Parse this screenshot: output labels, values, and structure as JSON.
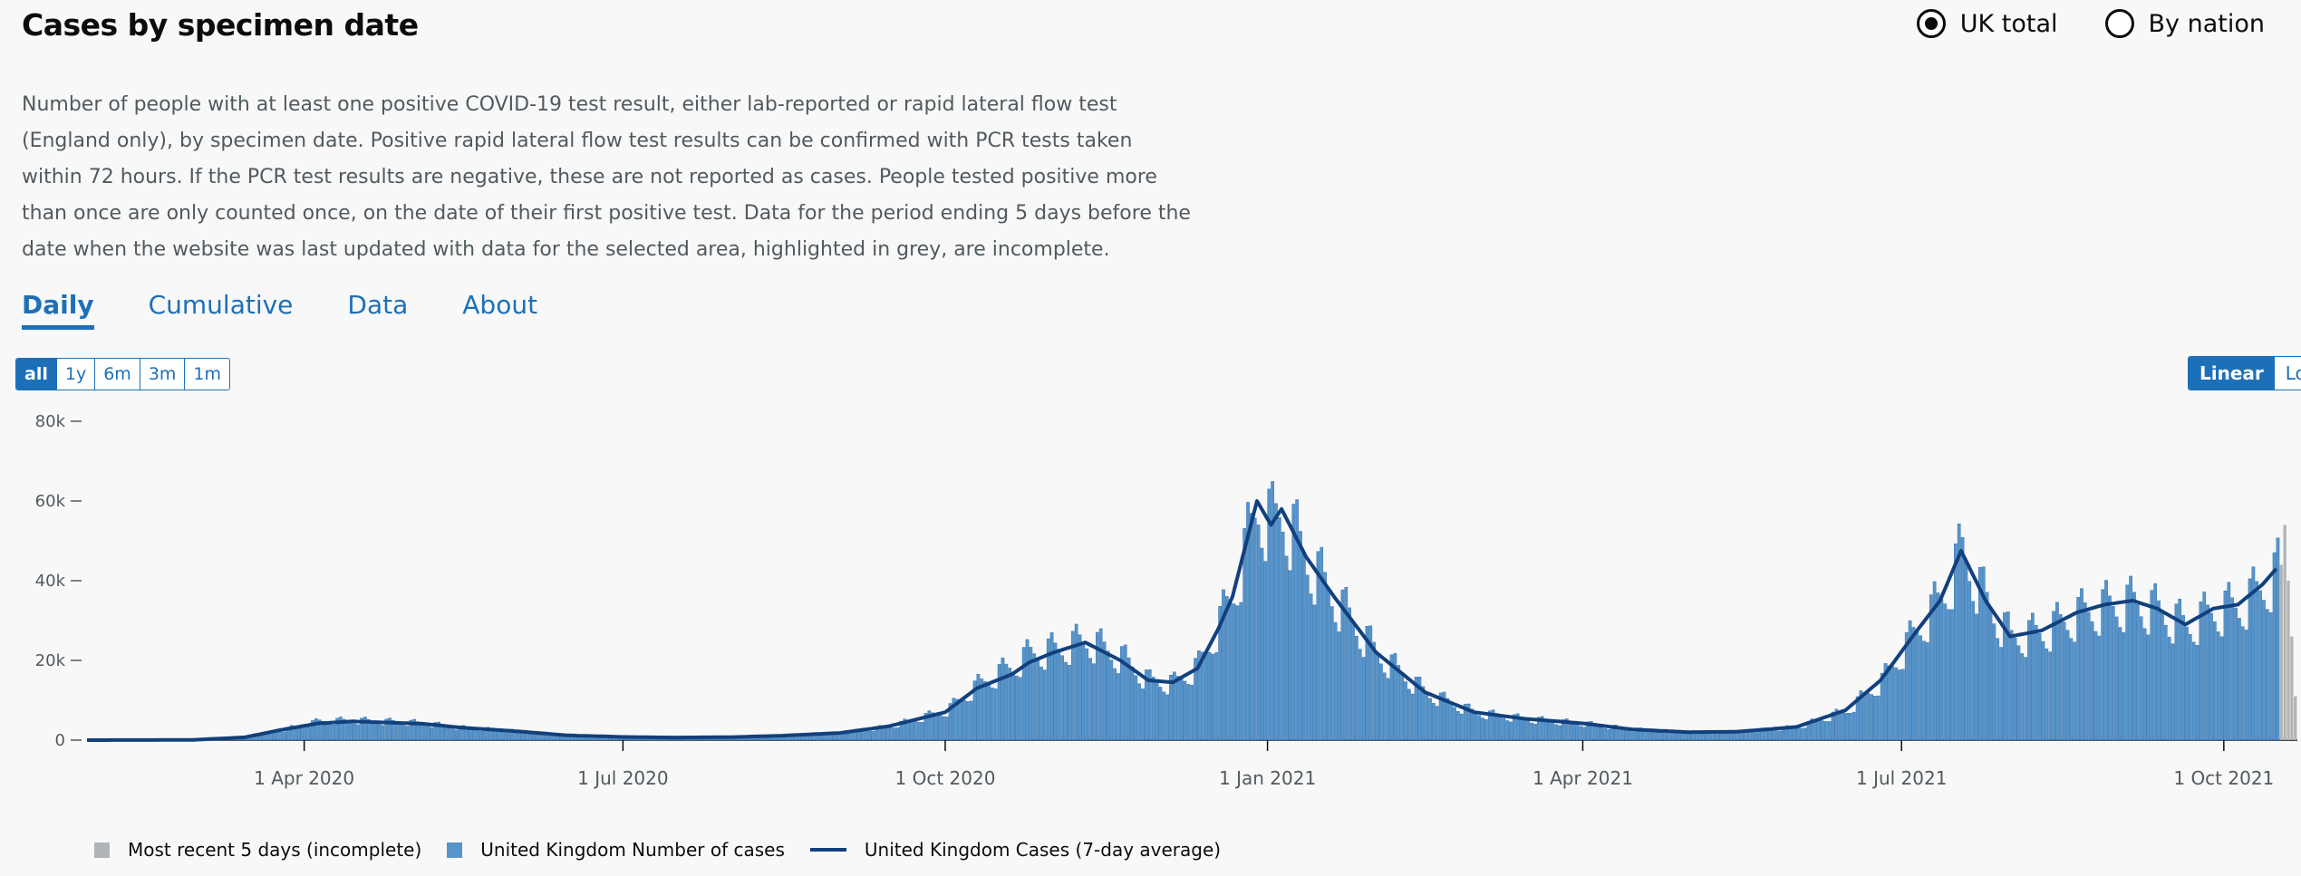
{
  "header": {
    "title": "Cases by specimen date",
    "radios": [
      {
        "label": "UK total",
        "checked": true
      },
      {
        "label": "By nation",
        "checked": false
      }
    ],
    "description": "Number of people with at least one positive COVID-19 test result, either lab-reported or rapid lateral flow test (England only), by specimen date. Positive rapid lateral flow test results can be confirmed with PCR tests taken within 72 hours. If the PCR test results are negative, these are not reported as cases. People tested positive more than once are only counted once, on the date of their first positive test. Data for the period ending 5 days before the date when the website was last updated with data for the selected area, highlighted in grey, are incomplete."
  },
  "tabs": [
    "Daily",
    "Cumulative",
    "Data",
    "About"
  ],
  "range_buttons": [
    "all",
    "1y",
    "6m",
    "3m",
    "1m"
  ],
  "scale_buttons": [
    "Linear",
    "Log"
  ],
  "colors": {
    "bar": "#5694ca",
    "bar_stroke": "#2c6aa8",
    "incomplete": "#b1b4b6",
    "line": "#12407c",
    "accent": "#1d70b8"
  },
  "chart_data": {
    "type": "bar",
    "title": "",
    "xlabel": "",
    "ylabel": "",
    "ylim": [
      0,
      80000
    ],
    "y_ticks": [
      0,
      20000,
      40000,
      60000,
      80000
    ],
    "y_tick_labels": [
      "0",
      "20k",
      "40k",
      "60k",
      "80k"
    ],
    "x_tick_labels": [
      "1 Apr 2020",
      "1 Jul 2020",
      "1 Oct 2020",
      "1 Jan 2021",
      "1 Apr 2021",
      "1 Jul 2021",
      "1 Oct 2021"
    ],
    "x_tick_dates": [
      "2020-04-01",
      "2020-07-01",
      "2020-10-01",
      "2021-01-01",
      "2021-04-01",
      "2021-07-01",
      "2021-10-01"
    ],
    "x_range": [
      "2020-01-30",
      "2021-10-21"
    ],
    "grid": false,
    "legend_position": "bottom-left",
    "series": [
      {
        "name": "United Kingdom Number of cases",
        "kind": "bar",
        "points": [
          [
            "2020-01-30",
            0
          ],
          [
            "2020-02-29",
            50
          ],
          [
            "2020-03-15",
            700
          ],
          [
            "2020-03-25",
            2500
          ],
          [
            "2020-04-05",
            4800
          ],
          [
            "2020-04-15",
            5000
          ],
          [
            "2020-04-25",
            4700
          ],
          [
            "2020-05-05",
            4300
          ],
          [
            "2020-05-15",
            3200
          ],
          [
            "2020-06-01",
            2200
          ],
          [
            "2020-06-15",
            1200
          ],
          [
            "2020-07-01",
            800
          ],
          [
            "2020-07-15",
            650
          ],
          [
            "2020-08-01",
            750
          ],
          [
            "2020-08-15",
            1100
          ],
          [
            "2020-09-01",
            1800
          ],
          [
            "2020-09-15",
            3500
          ],
          [
            "2020-10-01",
            7500
          ],
          [
            "2020-10-10",
            14000
          ],
          [
            "2020-10-20",
            19000
          ],
          [
            "2020-10-25",
            22000
          ],
          [
            "2020-11-01",
            23000
          ],
          [
            "2020-11-10",
            25500
          ],
          [
            "2020-11-20",
            21000
          ],
          [
            "2020-11-28",
            15000
          ],
          [
            "2020-12-05",
            14500
          ],
          [
            "2020-12-12",
            19000
          ],
          [
            "2020-12-18",
            30000
          ],
          [
            "2020-12-22",
            38000
          ],
          [
            "2020-12-29",
            60000
          ],
          [
            "2021-01-02",
            55000
          ],
          [
            "2021-01-05",
            58000
          ],
          [
            "2021-01-12",
            46000
          ],
          [
            "2021-01-20",
            36000
          ],
          [
            "2021-02-01",
            22000
          ],
          [
            "2021-02-15",
            12000
          ],
          [
            "2021-03-01",
            7000
          ],
          [
            "2021-03-15",
            5400
          ],
          [
            "2021-04-01",
            4200
          ],
          [
            "2021-04-15",
            2700
          ],
          [
            "2021-05-01",
            2000
          ],
          [
            "2021-05-15",
            2100
          ],
          [
            "2021-06-01",
            3300
          ],
          [
            "2021-06-15",
            7500
          ],
          [
            "2021-06-25",
            15000
          ],
          [
            "2021-07-05",
            28000
          ],
          [
            "2021-07-12",
            36000
          ],
          [
            "2021-07-18",
            48000
          ],
          [
            "2021-07-25",
            35000
          ],
          [
            "2021-08-01",
            26000
          ],
          [
            "2021-08-10",
            27500
          ],
          [
            "2021-08-20",
            32000
          ],
          [
            "2021-08-28",
            34000
          ],
          [
            "2021-09-05",
            35000
          ],
          [
            "2021-09-12",
            33000
          ],
          [
            "2021-09-20",
            29000
          ],
          [
            "2021-09-28",
            33000
          ],
          [
            "2021-10-05",
            34000
          ],
          [
            "2021-10-12",
            39000
          ],
          [
            "2021-10-16",
            43000
          ]
        ]
      },
      {
        "name": "United Kingdom Cases (7-day average)",
        "kind": "line",
        "points": [
          [
            "2020-01-30",
            0
          ],
          [
            "2020-02-29",
            50
          ],
          [
            "2020-03-15",
            700
          ],
          [
            "2020-03-25",
            2500
          ],
          [
            "2020-04-05",
            4200
          ],
          [
            "2020-04-15",
            4700
          ],
          [
            "2020-04-25",
            4400
          ],
          [
            "2020-05-05",
            4100
          ],
          [
            "2020-05-15",
            3200
          ],
          [
            "2020-06-01",
            2200
          ],
          [
            "2020-06-15",
            1200
          ],
          [
            "2020-07-01",
            800
          ],
          [
            "2020-07-15",
            650
          ],
          [
            "2020-08-01",
            750
          ],
          [
            "2020-08-15",
            1100
          ],
          [
            "2020-09-01",
            1800
          ],
          [
            "2020-09-15",
            3500
          ],
          [
            "2020-10-01",
            7000
          ],
          [
            "2020-10-10",
            13000
          ],
          [
            "2020-10-20",
            16500
          ],
          [
            "2020-10-25",
            19500
          ],
          [
            "2020-11-01",
            22000
          ],
          [
            "2020-11-10",
            24500
          ],
          [
            "2020-11-20",
            20000
          ],
          [
            "2020-11-28",
            15000
          ],
          [
            "2020-12-05",
            14500
          ],
          [
            "2020-12-12",
            18000
          ],
          [
            "2020-12-18",
            28000
          ],
          [
            "2020-12-22",
            36000
          ],
          [
            "2020-12-29",
            60000
          ],
          [
            "2021-01-02",
            54000
          ],
          [
            "2021-01-05",
            58000
          ],
          [
            "2021-01-12",
            46000
          ],
          [
            "2021-01-20",
            36000
          ],
          [
            "2021-02-01",
            22000
          ],
          [
            "2021-02-15",
            12000
          ],
          [
            "2021-03-01",
            7000
          ],
          [
            "2021-03-15",
            5400
          ],
          [
            "2021-04-01",
            4200
          ],
          [
            "2021-04-15",
            2700
          ],
          [
            "2021-05-01",
            2000
          ],
          [
            "2021-05-15",
            2100
          ],
          [
            "2021-06-01",
            3300
          ],
          [
            "2021-06-15",
            7500
          ],
          [
            "2021-06-25",
            15000
          ],
          [
            "2021-07-05",
            27000
          ],
          [
            "2021-07-12",
            35000
          ],
          [
            "2021-07-18",
            47500
          ],
          [
            "2021-07-25",
            35000
          ],
          [
            "2021-08-01",
            26000
          ],
          [
            "2021-08-10",
            27500
          ],
          [
            "2021-08-20",
            32000
          ],
          [
            "2021-08-28",
            34000
          ],
          [
            "2021-09-05",
            35000
          ],
          [
            "2021-09-12",
            33000
          ],
          [
            "2021-09-20",
            29000
          ],
          [
            "2021-09-28",
            33000
          ],
          [
            "2021-10-05",
            34000
          ],
          [
            "2021-10-12",
            39000
          ],
          [
            "2021-10-16",
            43000
          ]
        ]
      },
      {
        "name": "Most recent 5 days (incomplete)",
        "kind": "bar",
        "points": [
          [
            "2021-10-17",
            44000
          ],
          [
            "2021-10-18",
            54000
          ],
          [
            "2021-10-19",
            40000
          ],
          [
            "2021-10-20",
            26000
          ],
          [
            "2021-10-21",
            11000
          ]
        ]
      }
    ]
  },
  "legend": [
    {
      "label": "Most recent 5 days (incomplete)",
      "kind": "square",
      "color": "#b1b4b6"
    },
    {
      "label": "United Kingdom Number of cases",
      "kind": "square",
      "color": "#5694ca"
    },
    {
      "label": "United Kingdom Cases (7-day average)",
      "kind": "line",
      "color": "#12407c"
    }
  ]
}
